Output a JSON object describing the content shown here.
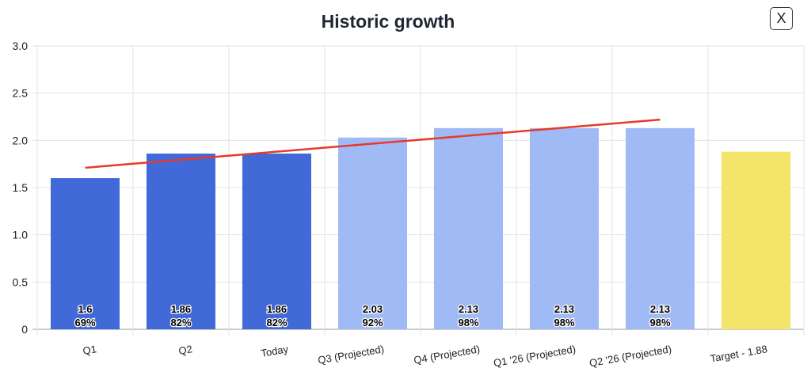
{
  "header": {
    "title": "Historic growth",
    "close_label": "X",
    "close_icon": "close-icon"
  },
  "chart_data": {
    "type": "bar",
    "title": "Historic growth",
    "categories": [
      "Q1",
      "Q2",
      "Today",
      "Q3 (Projected)",
      "Q4 (Projected)",
      "Q1 '26 (Projected)",
      "Q2 '26 (Projected)",
      "Target - 1.88"
    ],
    "values": [
      1.6,
      1.86,
      1.86,
      2.03,
      2.13,
      2.13,
      2.13,
      1.88
    ],
    "value_labels": [
      "1.6",
      "1.86",
      "1.86",
      "2.03",
      "2.13",
      "2.13",
      "2.13",
      ""
    ],
    "percent_labels": [
      "69%",
      "82%",
      "82%",
      "92%",
      "98%",
      "98%",
      "98%",
      ""
    ],
    "bar_colors": [
      "#4169d8",
      "#4169d8",
      "#4169d8",
      "#a0baf5",
      "#a0baf5",
      "#a0baf5",
      "#a0baf5",
      "#f3e46a"
    ],
    "trendline": {
      "color": "#e8392b",
      "from_category": "Q1",
      "to_category": "Q2 '26 (Projected)",
      "start": 1.71,
      "end": 2.22
    },
    "ylim": [
      0,
      3.0
    ],
    "yticks": [
      "0",
      "0.5",
      "1.0",
      "1.5",
      "2.0",
      "2.5",
      "3.0"
    ],
    "grid": true,
    "xlabel": "",
    "ylabel": ""
  }
}
